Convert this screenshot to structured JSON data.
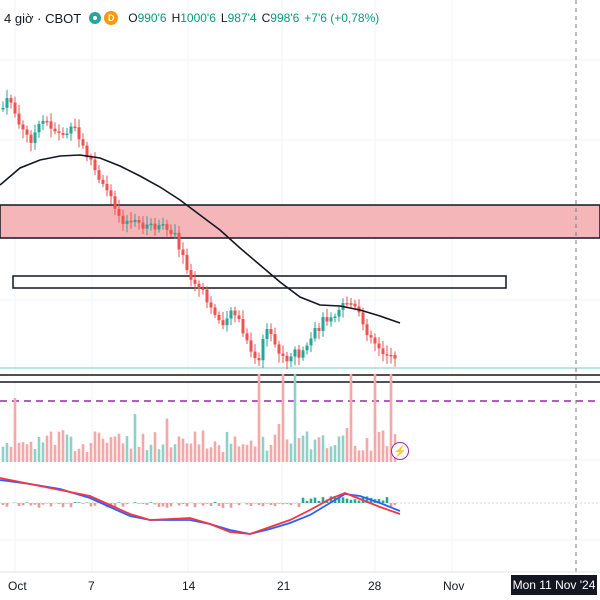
{
  "legend": {
    "timeframe": "4 giờ",
    "separator": "·",
    "symbol": "CBOT",
    "badge": "D",
    "open_label": "O",
    "open": "990'6",
    "high_label": "H",
    "high": "1000'6",
    "low_label": "L",
    "low": "987'4",
    "close_label": "C",
    "close": "998'6",
    "change": "+7'6 (+0,78%)"
  },
  "x_axis": {
    "ticks": [
      "Oct",
      "7",
      "14",
      "21",
      "28",
      "Nov"
    ],
    "crosshair_date": "Mon 11 Nov '24"
  },
  "colors": {
    "up": "#26a69a",
    "down": "#ef5350",
    "zone_fill": "#f4b6b8",
    "dashed_line": "#9c27b0",
    "ma_line": "#131722",
    "macd_line": "#2962ff",
    "signal_line": "#f23645"
  },
  "icons": {
    "flash": "lightning-bolt-icon"
  },
  "chart_data": {
    "type": "candlestick",
    "x": [
      "Oct",
      "7",
      "14",
      "21",
      "28",
      "Nov"
    ],
    "last_close": "998'6"
  }
}
